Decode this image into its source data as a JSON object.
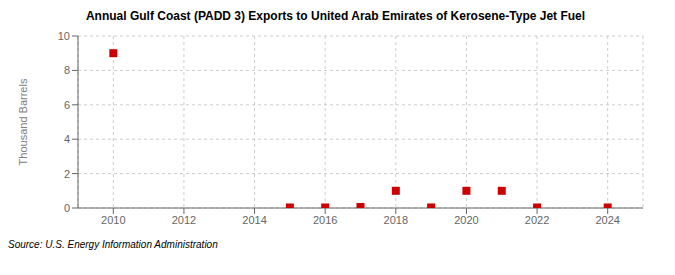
{
  "chart_data": {
    "type": "scatter",
    "title": "Annual Gulf Coast (PADD 3) Exports to United Arab Emirates of Kerosene-Type Jet Fuel",
    "ylabel": "Thousand Barrels",
    "annotation": "Source: U.S. Energy Information Administration",
    "x": [
      2010,
      2015,
      2016,
      2017,
      2018,
      2019,
      2020,
      2021,
      2022,
      2024
    ],
    "values": [
      9,
      0.03,
      0.03,
      0.06,
      1.0,
      0.03,
      1.0,
      1.0,
      0.03,
      0.03
    ],
    "xlim": [
      2009,
      2025
    ],
    "ylim": [
      0,
      10
    ],
    "xticks": [
      2010,
      2012,
      2014,
      2016,
      2018,
      2020,
      2022,
      2024
    ],
    "yticks": [
      0,
      2,
      4,
      6,
      8,
      10
    ],
    "color": "#cc0000",
    "marker": "square",
    "grid": true
  }
}
